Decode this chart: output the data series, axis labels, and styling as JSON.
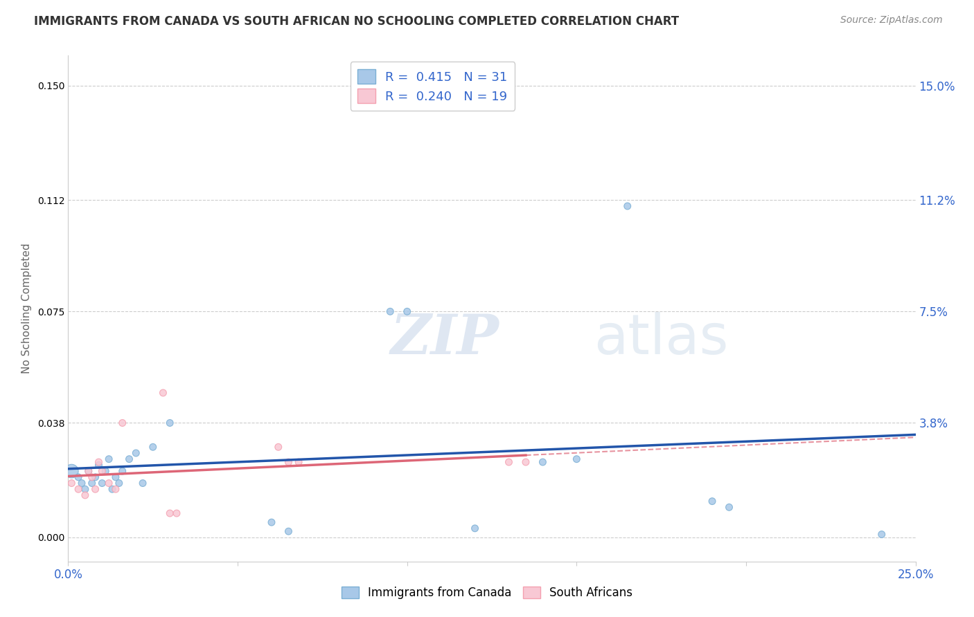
{
  "title": "IMMIGRANTS FROM CANADA VS SOUTH AFRICAN NO SCHOOLING COMPLETED CORRELATION CHART",
  "source": "Source: ZipAtlas.com",
  "ylabel": "No Schooling Completed",
  "xlim": [
    0.0,
    0.25
  ],
  "ylim": [
    -0.008,
    0.16
  ],
  "yticks": [
    0.0,
    0.038,
    0.075,
    0.112,
    0.15
  ],
  "ytick_labels": [
    "",
    "3.8%",
    "7.5%",
    "11.2%",
    "15.0%"
  ],
  "xticks": [
    0.0,
    0.05,
    0.1,
    0.15,
    0.2,
    0.25
  ],
  "xtick_labels": [
    "0.0%",
    "",
    "",
    "",
    "",
    "25.0%"
  ],
  "blue_fill": "#a8c8e8",
  "blue_edge": "#7bafd4",
  "pink_fill": "#f8c8d4",
  "pink_edge": "#f4a0b0",
  "blue_line_color": "#2255aa",
  "pink_line_color": "#dd6677",
  "blue_R": 0.415,
  "blue_N": 31,
  "pink_R": 0.24,
  "pink_N": 19,
  "blue_scatter_x": [
    0.001,
    0.003,
    0.004,
    0.005,
    0.006,
    0.007,
    0.008,
    0.009,
    0.01,
    0.011,
    0.012,
    0.013,
    0.014,
    0.015,
    0.016,
    0.018,
    0.02,
    0.022,
    0.025,
    0.03,
    0.06,
    0.065,
    0.095,
    0.1,
    0.12,
    0.14,
    0.15,
    0.165,
    0.19,
    0.195,
    0.24
  ],
  "blue_scatter_y": [
    0.022,
    0.02,
    0.018,
    0.016,
    0.022,
    0.018,
    0.02,
    0.024,
    0.018,
    0.022,
    0.026,
    0.016,
    0.02,
    0.018,
    0.022,
    0.026,
    0.028,
    0.018,
    0.03,
    0.038,
    0.005,
    0.002,
    0.075,
    0.075,
    0.003,
    0.025,
    0.026,
    0.11,
    0.012,
    0.01,
    0.001
  ],
  "blue_scatter_sizes": [
    200,
    50,
    50,
    50,
    50,
    50,
    50,
    50,
    50,
    50,
    50,
    50,
    50,
    50,
    50,
    50,
    50,
    50,
    50,
    50,
    50,
    50,
    50,
    50,
    50,
    50,
    50,
    50,
    50,
    50,
    50
  ],
  "pink_scatter_x": [
    0.001,
    0.003,
    0.005,
    0.006,
    0.007,
    0.008,
    0.009,
    0.01,
    0.012,
    0.014,
    0.016,
    0.028,
    0.03,
    0.032,
    0.062,
    0.065,
    0.068,
    0.13,
    0.135
  ],
  "pink_scatter_y": [
    0.018,
    0.016,
    0.014,
    0.022,
    0.02,
    0.016,
    0.025,
    0.022,
    0.018,
    0.016,
    0.038,
    0.048,
    0.008,
    0.008,
    0.03,
    0.025,
    0.025,
    0.025,
    0.025
  ],
  "pink_scatter_sizes": [
    50,
    50,
    50,
    50,
    50,
    50,
    50,
    50,
    50,
    50,
    50,
    50,
    50,
    50,
    50,
    50,
    50,
    50,
    50
  ],
  "watermark_zip": "ZIP",
  "watermark_atlas": "atlas",
  "legend_label_blue": "Immigrants from Canada",
  "legend_label_pink": "South Africans",
  "background_color": "#ffffff",
  "grid_color": "#cccccc",
  "title_color": "#333333",
  "axis_label_color": "#666666",
  "tick_label_color": "#3366cc"
}
